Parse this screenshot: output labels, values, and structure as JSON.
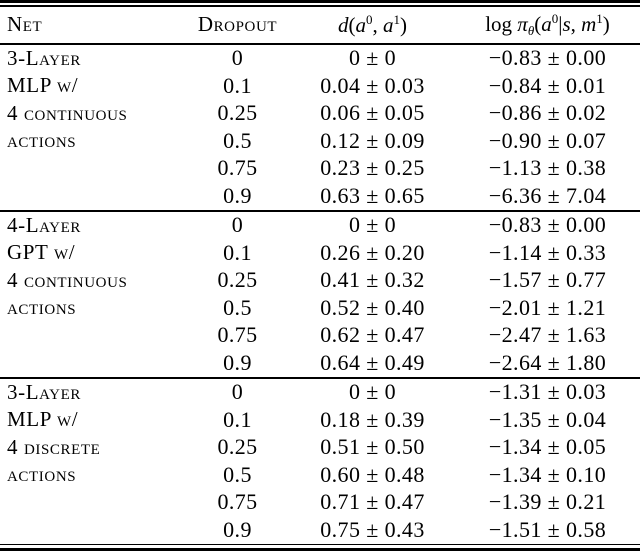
{
  "table": {
    "headers": {
      "net": "Net",
      "dropout": "Dropout",
      "d_parts": [
        {
          "text": "d",
          "style": "it"
        },
        {
          "text": "(",
          "style": "up"
        },
        {
          "text": "a",
          "style": "it"
        },
        {
          "text": "0",
          "style": "sup"
        },
        {
          "text": ", ",
          "style": "up"
        },
        {
          "text": "a",
          "style": "it"
        },
        {
          "text": "1",
          "style": "sup"
        },
        {
          "text": ")",
          "style": "up"
        }
      ],
      "logpi_parts": [
        {
          "text": "log ",
          "style": "up"
        },
        {
          "text": "π",
          "style": "it"
        },
        {
          "text": "θ",
          "style": "sub"
        },
        {
          "text": "(",
          "style": "up"
        },
        {
          "text": "a",
          "style": "it"
        },
        {
          "text": "0",
          "style": "sup"
        },
        {
          "text": "|",
          "style": "up"
        },
        {
          "text": "s",
          "style": "it"
        },
        {
          "text": ", ",
          "style": "up"
        },
        {
          "text": "m",
          "style": "it"
        },
        {
          "text": "1",
          "style": "sup"
        },
        {
          "text": ")",
          "style": "up"
        }
      ]
    },
    "sections": [
      {
        "net_label": "3-Layer MLP w/ 4 continuous actions",
        "rows": [
          {
            "net": "3-Layer",
            "dropout": "0",
            "d": "0 ± 0",
            "logpi": "−0.83 ± 0.00"
          },
          {
            "net": "MLP w/",
            "dropout": "0.1",
            "d": "0.04 ± 0.03",
            "logpi": "−0.84 ± 0.01"
          },
          {
            "net": "4 continuous",
            "dropout": "0.25",
            "d": "0.06 ± 0.05",
            "logpi": "−0.86 ± 0.02"
          },
          {
            "net": "actions",
            "dropout": "0.5",
            "d": "0.12 ± 0.09",
            "logpi": "−0.90 ± 0.07"
          },
          {
            "net": "",
            "dropout": "0.75",
            "d": "0.23 ± 0.25",
            "logpi": "−1.13 ± 0.38"
          },
          {
            "net": "",
            "dropout": "0.9",
            "d": "0.63 ± 0.65",
            "logpi": "−6.36 ± 7.04"
          }
        ]
      },
      {
        "net_label": "4-Layer GPT w/ 4 continuous actions",
        "rows": [
          {
            "net": "4-Layer",
            "dropout": "0",
            "d": "0 ± 0",
            "logpi": "−0.83 ± 0.00"
          },
          {
            "net": "GPT w/",
            "dropout": "0.1",
            "d": "0.26 ± 0.20",
            "logpi": "−1.14 ± 0.33"
          },
          {
            "net": "4 continuous",
            "dropout": "0.25",
            "d": "0.41 ± 0.32",
            "logpi": "−1.57 ± 0.77"
          },
          {
            "net": "actions",
            "dropout": "0.5",
            "d": "0.52 ± 0.40",
            "logpi": "−2.01 ± 1.21"
          },
          {
            "net": "",
            "dropout": "0.75",
            "d": "0.62 ± 0.47",
            "logpi": "−2.47 ± 1.63"
          },
          {
            "net": "",
            "dropout": "0.9",
            "d": "0.64 ± 0.49",
            "logpi": "−2.64 ± 1.80"
          }
        ]
      },
      {
        "net_label": "3-Layer MLP w/ 4 discrete actions",
        "rows": [
          {
            "net": "3-Layer",
            "dropout": "0",
            "d": "0 ± 0",
            "logpi": "−1.31 ± 0.03"
          },
          {
            "net": "MLP w/",
            "dropout": "0.1",
            "d": "0.18 ± 0.39",
            "logpi": "−1.35 ± 0.04"
          },
          {
            "net": "4 discrete",
            "dropout": "0.25",
            "d": "0.51 ± 0.50",
            "logpi": "−1.34 ± 0.05"
          },
          {
            "net": "actions",
            "dropout": "0.5",
            "d": "0.60 ± 0.48",
            "logpi": "−1.34 ± 0.10"
          },
          {
            "net": "",
            "dropout": "0.75",
            "d": "0.71 ± 0.47",
            "logpi": "−1.39 ± 0.21"
          },
          {
            "net": "",
            "dropout": "0.9",
            "d": "0.75 ± 0.43",
            "logpi": "−1.51 ± 0.58"
          }
        ]
      }
    ]
  }
}
